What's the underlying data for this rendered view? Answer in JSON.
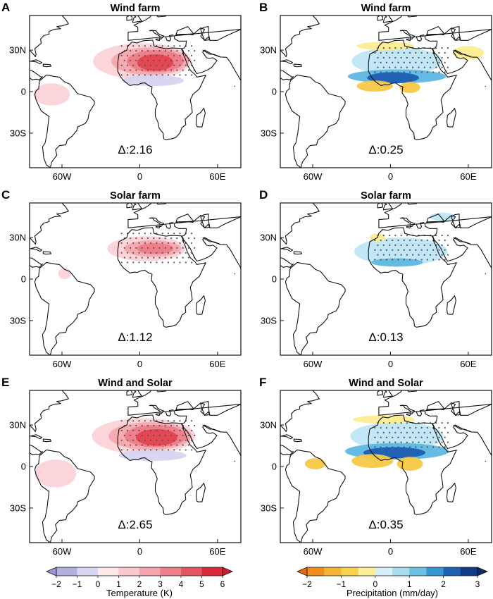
{
  "panels": [
    {
      "letter": "A",
      "title": "Wind farm",
      "delta": "Δ:2.16",
      "variable": "temperature",
      "blobs": [
        {
          "lon": 2,
          "lat": 22,
          "rx": 38,
          "ry": 13,
          "level": "+1"
        },
        {
          "lon": 8,
          "lat": 22,
          "rx": 30,
          "ry": 10,
          "level": "+2"
        },
        {
          "lon": 12,
          "lat": 22,
          "rx": 22,
          "ry": 8,
          "level": "+3"
        },
        {
          "lon": 12,
          "lat": 21,
          "rx": 14,
          "ry": 6,
          "level": "+4"
        },
        {
          "lon": 10,
          "lat": 8,
          "rx": 24,
          "ry": 4,
          "level": "-1"
        },
        {
          "lon": -68,
          "lat": -2,
          "rx": 14,
          "ry": 8,
          "level": "+1"
        }
      ]
    },
    {
      "letter": "B",
      "title": "Wind farm",
      "delta": "Δ:0.25",
      "variable": "precipitation",
      "blobs": [
        {
          "lon": 5,
          "lat": 22,
          "rx": 35,
          "ry": 10,
          "level": "+1"
        },
        {
          "lon": 5,
          "lat": 11,
          "rx": 38,
          "ry": 5,
          "level": "+2"
        },
        {
          "lon": 2,
          "lat": 10,
          "rx": 20,
          "ry": 4,
          "level": "+3"
        },
        {
          "lon": -4,
          "lat": 33,
          "rx": 22,
          "ry": 3,
          "level": "-0.5"
        },
        {
          "lon": 60,
          "lat": 28,
          "rx": 12,
          "ry": 5,
          "level": "-0.5"
        },
        {
          "lon": -12,
          "lat": 4,
          "rx": 14,
          "ry": 4,
          "level": "-1"
        },
        {
          "lon": 15,
          "lat": 3,
          "rx": 8,
          "ry": 4,
          "level": "-1"
        }
      ]
    },
    {
      "letter": "C",
      "title": "Solar farm",
      "delta": "Δ:1.12",
      "variable": "temperature",
      "blobs": [
        {
          "lon": 5,
          "lat": 22,
          "rx": 30,
          "ry": 9,
          "level": "+1"
        },
        {
          "lon": 10,
          "lat": 22,
          "rx": 22,
          "ry": 6,
          "level": "+2"
        },
        {
          "lon": 12,
          "lat": 22,
          "rx": 14,
          "ry": 4,
          "level": "+3"
        },
        {
          "lon": -58,
          "lat": 4,
          "rx": 5,
          "ry": 4,
          "level": "+1"
        }
      ]
    },
    {
      "letter": "D",
      "title": "Solar farm",
      "delta": "Δ:0.13",
      "variable": "precipitation",
      "blobs": [
        {
          "lon": 8,
          "lat": 20,
          "rx": 36,
          "ry": 10,
          "level": "+1"
        },
        {
          "lon": 5,
          "lat": 12,
          "rx": 20,
          "ry": 3,
          "level": "+2"
        },
        {
          "lon": -10,
          "lat": 30,
          "rx": 6,
          "ry": 3,
          "level": "-0.5"
        },
        {
          "lon": 40,
          "lat": 45,
          "rx": 10,
          "ry": 3,
          "level": "+1"
        }
      ]
    },
    {
      "letter": "E",
      "title": "Wind and Solar",
      "delta": "Δ:2.65",
      "variable": "temperature",
      "blobs": [
        {
          "lon": 3,
          "lat": 22,
          "rx": 40,
          "ry": 13,
          "level": "+1"
        },
        {
          "lon": 8,
          "lat": 22,
          "rx": 32,
          "ry": 10,
          "level": "+2"
        },
        {
          "lon": 12,
          "lat": 22,
          "rx": 24,
          "ry": 8,
          "level": "+3"
        },
        {
          "lon": 13,
          "lat": 21,
          "rx": 16,
          "ry": 6,
          "level": "+4"
        },
        {
          "lon": 10,
          "lat": 8,
          "rx": 26,
          "ry": 4,
          "level": "-1"
        },
        {
          "lon": -65,
          "lat": -5,
          "rx": 16,
          "ry": 10,
          "level": "+1"
        }
      ]
    },
    {
      "letter": "F",
      "title": "Wind and Solar",
      "delta": "Δ:0.35",
      "variable": "precipitation",
      "blobs": [
        {
          "lon": 5,
          "lat": 22,
          "rx": 36,
          "ry": 10,
          "level": "+1"
        },
        {
          "lon": 5,
          "lat": 11,
          "rx": 40,
          "ry": 6,
          "level": "+2"
        },
        {
          "lon": 3,
          "lat": 10,
          "rx": 24,
          "ry": 4,
          "level": "+3"
        },
        {
          "lon": -5,
          "lat": 34,
          "rx": 24,
          "ry": 3,
          "level": "-0.5"
        },
        {
          "lon": -14,
          "lat": 4,
          "rx": 16,
          "ry": 5,
          "level": "-1"
        },
        {
          "lon": 15,
          "lat": 2,
          "rx": 10,
          "ry": 5,
          "level": "-1"
        },
        {
          "lon": -58,
          "lat": 2,
          "rx": 8,
          "ry": 4,
          "level": "-1"
        }
      ]
    }
  ],
  "axes": {
    "lon_range": [
      -85,
      78
    ],
    "lat_range": [
      -55,
      55
    ],
    "lat_ticks": [
      {
        "v": 30,
        "label": "30N"
      },
      {
        "v": 0,
        "label": "0"
      },
      {
        "v": -30,
        "label": "30S"
      }
    ],
    "lon_ticks": [
      {
        "v": -60,
        "label": "60W"
      },
      {
        "v": 0,
        "label": "0"
      },
      {
        "v": 60,
        "label": "60E"
      }
    ]
  },
  "colorbars": [
    {
      "name": "temperature",
      "label": "Temperature (K)",
      "ticks": [
        "−2",
        "−1",
        "0",
        "1",
        "2",
        "3",
        "4",
        "5",
        "6"
      ],
      "colors": [
        "#b3b0e0",
        "#d8d6f0",
        "#fde8ea",
        "#f9c7cc",
        "#f3a4ac",
        "#ec7f89",
        "#e55563",
        "#dc2a3a"
      ],
      "under_color": "#9d99d6",
      "over_color": "#cc1d2d"
    },
    {
      "name": "precipitation",
      "label": "Precipitation (mm/day)",
      "ticks": [
        "−2",
        "−1",
        "0",
        "1",
        "2",
        "3"
      ],
      "colors": [
        "#f08d1c",
        "#f5b433",
        "#f8d24f",
        "#fcef9a",
        "#d7f0f7",
        "#a9dcee",
        "#6cc0e3",
        "#3397d1",
        "#1c62b2",
        "#0f3b8a"
      ],
      "under_color": "#e56f12",
      "over_color": "#0a2a6a"
    }
  ],
  "colors": {
    "temperature": {
      "-1": "#d6d4f0",
      "+1": "#fbd3d8",
      "+2": "#f5a9b1",
      "+3": "#ee7d89",
      "+4": "#e4434f"
    },
    "precipitation": {
      "-0.5": "#fdec90",
      "-1": "#f7c844",
      "+1": "#bfe6f5",
      "+2": "#5eb7e2",
      "+3": "#1c5eb2"
    }
  }
}
